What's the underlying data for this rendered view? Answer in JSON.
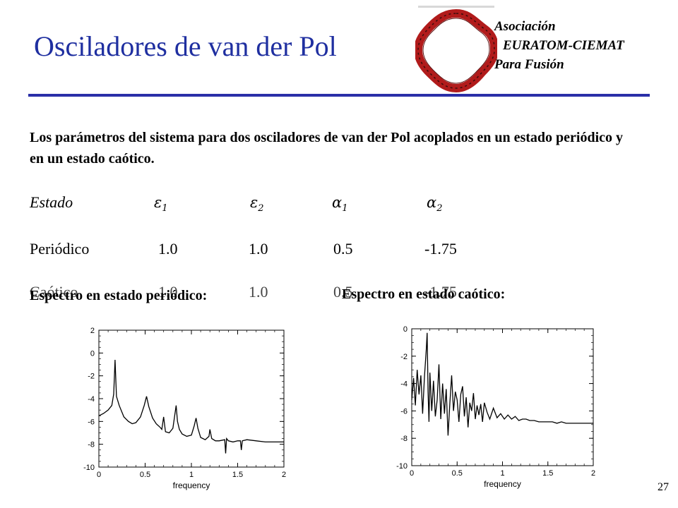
{
  "slide": {
    "title": "Osciladores de van der Pol",
    "logo_lines": [
      "Asociación",
      "EURATOM-CIEMAT",
      "Para Fusión"
    ],
    "description": "Los parámetros del sistema para dos osciladores de van der Pol acoplados en un estado periódico y en un estado caótico.",
    "page_number": "27"
  },
  "params_table": {
    "header": {
      "state": "Estado",
      "eps1": "ε",
      "eps1_sub": "1",
      "eps2": "ε",
      "eps2_sub": "2",
      "alpha1": "α",
      "alpha1_sub": "1",
      "alpha2": "α",
      "alpha2_sub": "2"
    },
    "rows": [
      {
        "state": "Periódico",
        "eps1": "1.0",
        "eps2": "1.0",
        "alpha1": "0.5",
        "alpha2": "-1.75"
      },
      {
        "state": "Caótico",
        "eps1": "1.0",
        "eps2": "1.0",
        "alpha1": "0.5",
        "alpha2": "-1.75"
      }
    ]
  },
  "spectra_labels": {
    "periodic": "Espectro en estado periódico:",
    "chaotic": "Espectro en estado caótico:"
  },
  "chart_data": [
    {
      "type": "line",
      "title": "",
      "xlabel": "frequency",
      "ylabel": "",
      "xlim": [
        0,
        2
      ],
      "ylim": [
        -10,
        2
      ],
      "xticks": [
        "0",
        "0.5",
        "1",
        "1.5",
        "2"
      ],
      "yticks": [
        "2",
        "0",
        "-2",
        "-4",
        "-6",
        "-8",
        "-10"
      ],
      "grid": false,
      "series": [
        {
          "x": [
            0.0,
            0.05,
            0.1,
            0.14,
            0.16,
            0.175,
            0.19,
            0.22,
            0.27,
            0.32,
            0.36,
            0.4,
            0.45,
            0.49,
            0.515,
            0.54,
            0.58,
            0.62,
            0.66,
            0.68,
            0.7,
            0.72,
            0.76,
            0.8,
            0.835,
            0.85,
            0.87,
            0.9,
            0.95,
            1.0,
            1.03,
            1.05,
            1.07,
            1.1,
            1.15,
            1.19,
            1.2,
            1.22,
            1.26,
            1.3,
            1.36,
            1.37,
            1.38,
            1.4,
            1.45,
            1.5,
            1.53,
            1.54,
            1.55,
            1.6,
            1.7,
            1.8,
            1.9,
            2.0
          ],
          "y": [
            -5.5,
            -5.3,
            -5.0,
            -4.6,
            -3.6,
            -0.6,
            -3.8,
            -4.6,
            -5.6,
            -6.0,
            -6.2,
            -6.1,
            -5.6,
            -4.6,
            -3.8,
            -4.7,
            -5.7,
            -6.2,
            -6.5,
            -6.7,
            -5.6,
            -6.9,
            -7.0,
            -6.6,
            -4.6,
            -6.0,
            -6.7,
            -7.1,
            -7.3,
            -7.2,
            -6.4,
            -5.7,
            -6.6,
            -7.4,
            -7.6,
            -7.3,
            -6.7,
            -7.5,
            -7.7,
            -7.7,
            -7.6,
            -8.8,
            -7.5,
            -7.7,
            -7.8,
            -7.7,
            -7.7,
            -8.5,
            -7.7,
            -7.6,
            -7.7,
            -7.8,
            -7.8,
            -7.8
          ]
        }
      ]
    },
    {
      "type": "line",
      "title": "",
      "xlabel": "frequency",
      "ylabel": "",
      "xlim": [
        0,
        2
      ],
      "ylim": [
        -10,
        0
      ],
      "xticks": [
        "0",
        "0.5",
        "1",
        "1.5",
        "2"
      ],
      "yticks": [
        "0",
        "-2",
        "-4",
        "-6",
        "-8",
        "-10"
      ],
      "grid": false,
      "series": [
        {
          "x": [
            0.0,
            0.02,
            0.04,
            0.06,
            0.08,
            0.1,
            0.12,
            0.14,
            0.16,
            0.17,
            0.18,
            0.19,
            0.2,
            0.22,
            0.24,
            0.26,
            0.28,
            0.3,
            0.32,
            0.34,
            0.36,
            0.38,
            0.4,
            0.42,
            0.44,
            0.46,
            0.48,
            0.5,
            0.52,
            0.54,
            0.56,
            0.58,
            0.6,
            0.62,
            0.64,
            0.66,
            0.68,
            0.7,
            0.72,
            0.74,
            0.76,
            0.78,
            0.8,
            0.83,
            0.86,
            0.9,
            0.94,
            0.98,
            1.02,
            1.06,
            1.1,
            1.14,
            1.18,
            1.22,
            1.26,
            1.3,
            1.35,
            1.4,
            1.45,
            1.5,
            1.55,
            1.6,
            1.65,
            1.7,
            1.75,
            1.8,
            1.85,
            1.9,
            1.95,
            2.0
          ],
          "y": [
            -5.2,
            -3.6,
            -5.6,
            -3.0,
            -4.8,
            -3.4,
            -6.2,
            -3.5,
            -1.5,
            -0.3,
            -4.6,
            -6.8,
            -3.2,
            -6.0,
            -3.8,
            -6.4,
            -5.2,
            -2.6,
            -6.6,
            -4.0,
            -6.2,
            -4.4,
            -7.8,
            -5.4,
            -3.4,
            -6.0,
            -4.6,
            -5.2,
            -6.8,
            -4.8,
            -4.2,
            -6.4,
            -5.0,
            -7.2,
            -5.4,
            -6.0,
            -4.7,
            -6.6,
            -5.6,
            -6.3,
            -5.5,
            -6.8,
            -5.4,
            -6.1,
            -6.6,
            -5.8,
            -6.5,
            -6.2,
            -6.6,
            -6.3,
            -6.6,
            -6.4,
            -6.7,
            -6.6,
            -6.6,
            -6.7,
            -6.7,
            -6.8,
            -6.8,
            -6.8,
            -6.8,
            -6.9,
            -6.8,
            -6.9,
            -6.9,
            -6.9,
            -6.9,
            -6.9,
            -6.9,
            -6.9
          ]
        }
      ]
    }
  ]
}
